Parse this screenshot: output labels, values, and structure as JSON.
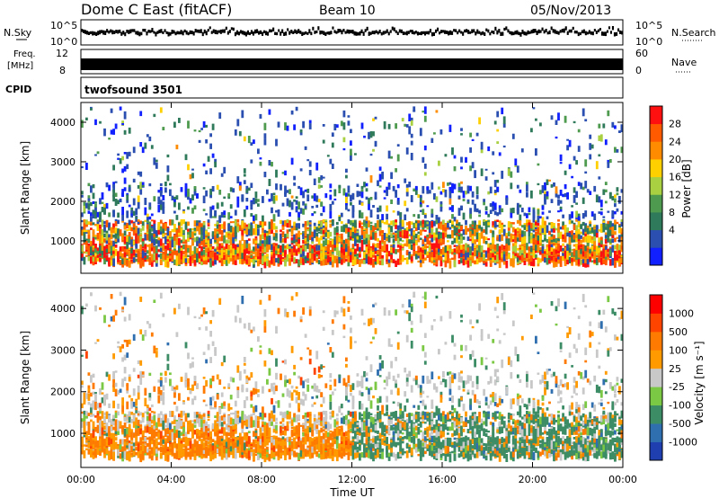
{
  "header": {
    "title": "Dome C East (fitACF)",
    "beam": "Beam 10",
    "date": "05/Nov/2013"
  },
  "summary_panels": {
    "nsky_label": "N.Sky",
    "nsky_ticks": [
      "10^5",
      "10^0"
    ],
    "nsearch_label": "N.Search",
    "nsearch_ticks": [
      "10^5",
      "10^0"
    ],
    "freq_label_1": "Freq.",
    "freq_label_2": "[MHz]",
    "freq_ticks": [
      "12",
      "8"
    ],
    "nave_label": "Nave",
    "nave_ticks": [
      "60",
      "0"
    ],
    "cpid_label": "CPID",
    "cpid_value": "twofsound 3501"
  },
  "chart_data": [
    {
      "type": "heatmap",
      "name": "power",
      "ylabel": "Slant Range [km]",
      "ylim": [
        180,
        4500
      ],
      "yticks": [
        "1000",
        "2000",
        "3000",
        "4000"
      ],
      "colorbar_label": "Power [dB]",
      "colorbar_ticks": [
        "28",
        "24",
        "20",
        "16",
        "12",
        "8",
        "4"
      ],
      "colors": [
        "#1020ff",
        "#2a4fb0",
        "#2f7a5a",
        "#4e9a4e",
        "#a8d040",
        "#ffd000",
        "#ff8c00",
        "#ff5a00",
        "#ff1010"
      ]
    },
    {
      "type": "heatmap",
      "name": "velocity",
      "ylabel": "Slant Range [km]",
      "ylim": [
        180,
        4500
      ],
      "yticks": [
        "1000",
        "2000",
        "3000",
        "4000"
      ],
      "xlabel": "Time UT",
      "xticks": [
        "00:00",
        "04:00",
        "08:00",
        "12:00",
        "16:00",
        "20:00",
        "00:00"
      ],
      "colorbar_label": "Velocity [m s⁻¹]",
      "colorbar_ticks": [
        "1000",
        "500",
        "100",
        "25",
        "-25",
        "-100",
        "-500",
        "-1000"
      ],
      "colors": [
        "#1f3fb0",
        "#2f6fb0",
        "#3c8c66",
        "#7ac843",
        "#c8c8c8",
        "#ff9a00",
        "#ff7a00",
        "#ff4400",
        "#ff0000"
      ]
    }
  ]
}
